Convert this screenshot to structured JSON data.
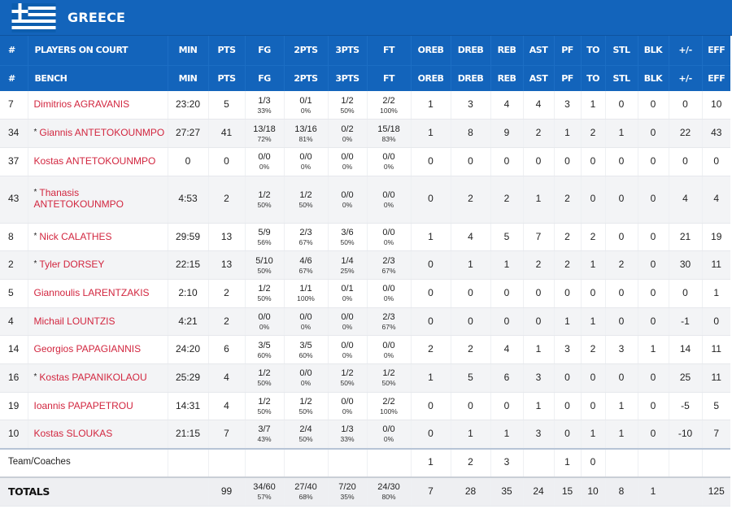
{
  "team": {
    "name": "GREECE",
    "flag_icon": "greece-flag-icon",
    "brand_color": "#1364bb",
    "player_link_color": "#d2263f"
  },
  "headers": {
    "row1": [
      "#",
      "PLAYERS ON COURT",
      "MIN",
      "PTS",
      "FG",
      "2PTS",
      "3PTS",
      "FT",
      "OREB",
      "DREB",
      "REB",
      "AST",
      "PF",
      "TO",
      "STL",
      "BLK",
      "+/-",
      "EFF"
    ],
    "row2": [
      "#",
      "BENCH",
      "MIN",
      "PTS",
      "FG",
      "2PTS",
      "3PTS",
      "FT",
      "OREB",
      "DREB",
      "REB",
      "AST",
      "PF",
      "TO",
      "STL",
      "BLK",
      "+/-",
      "EFF"
    ]
  },
  "players": [
    {
      "num": "7",
      "starter": false,
      "name": "Dimitrios AGRAVANIS",
      "min": "23:20",
      "pts": "5",
      "fg": "1/3",
      "fg_pct": "33%",
      "p2": "0/1",
      "p2_pct": "0%",
      "p3": "1/2",
      "p3_pct": "50%",
      "ft": "2/2",
      "ft_pct": "100%",
      "oreb": "1",
      "dreb": "3",
      "reb": "4",
      "ast": "4",
      "pf": "3",
      "to": "1",
      "stl": "0",
      "blk": "0",
      "pm": "0",
      "eff": "10"
    },
    {
      "num": "34",
      "starter": true,
      "name": "Giannis ANTETOKOUNMPO",
      "min": "27:27",
      "pts": "41",
      "fg": "13/18",
      "fg_pct": "72%",
      "p2": "13/16",
      "p2_pct": "81%",
      "p3": "0/2",
      "p3_pct": "0%",
      "ft": "15/18",
      "ft_pct": "83%",
      "oreb": "1",
      "dreb": "8",
      "reb": "9",
      "ast": "2",
      "pf": "1",
      "to": "2",
      "stl": "1",
      "blk": "0",
      "pm": "22",
      "eff": "43"
    },
    {
      "num": "37",
      "starter": false,
      "name": "Kostas ANTETOKOUNMPO",
      "min": "0",
      "pts": "0",
      "fg": "0/0",
      "fg_pct": "0%",
      "p2": "0/0",
      "p2_pct": "0%",
      "p3": "0/0",
      "p3_pct": "0%",
      "ft": "0/0",
      "ft_pct": "0%",
      "oreb": "0",
      "dreb": "0",
      "reb": "0",
      "ast": "0",
      "pf": "0",
      "to": "0",
      "stl": "0",
      "blk": "0",
      "pm": "0",
      "eff": "0"
    },
    {
      "num": "43",
      "starter": true,
      "name": "Thanasis ANTETOKOUNMPO",
      "min": "4:53",
      "pts": "2",
      "fg": "1/2",
      "fg_pct": "50%",
      "p2": "1/2",
      "p2_pct": "50%",
      "p3": "0/0",
      "p3_pct": "0%",
      "ft": "0/0",
      "ft_pct": "0%",
      "oreb": "0",
      "dreb": "2",
      "reb": "2",
      "ast": "1",
      "pf": "2",
      "to": "0",
      "stl": "0",
      "blk": "0",
      "pm": "4",
      "eff": "4"
    },
    {
      "num": "8",
      "starter": true,
      "name": "Nick CALATHES",
      "min": "29:59",
      "pts": "13",
      "fg": "5/9",
      "fg_pct": "56%",
      "p2": "2/3",
      "p2_pct": "67%",
      "p3": "3/6",
      "p3_pct": "50%",
      "ft": "0/0",
      "ft_pct": "0%",
      "oreb": "1",
      "dreb": "4",
      "reb": "5",
      "ast": "7",
      "pf": "2",
      "to": "2",
      "stl": "0",
      "blk": "0",
      "pm": "21",
      "eff": "19"
    },
    {
      "num": "2",
      "starter": true,
      "name": "Tyler DORSEY",
      "min": "22:15",
      "pts": "13",
      "fg": "5/10",
      "fg_pct": "50%",
      "p2": "4/6",
      "p2_pct": "67%",
      "p3": "1/4",
      "p3_pct": "25%",
      "ft": "2/3",
      "ft_pct": "67%",
      "oreb": "0",
      "dreb": "1",
      "reb": "1",
      "ast": "2",
      "pf": "2",
      "to": "1",
      "stl": "2",
      "blk": "0",
      "pm": "30",
      "eff": "11"
    },
    {
      "num": "5",
      "starter": false,
      "name": "Giannoulis LARENTZAKIS",
      "min": "2:10",
      "pts": "2",
      "fg": "1/2",
      "fg_pct": "50%",
      "p2": "1/1",
      "p2_pct": "100%",
      "p3": "0/1",
      "p3_pct": "0%",
      "ft": "0/0",
      "ft_pct": "0%",
      "oreb": "0",
      "dreb": "0",
      "reb": "0",
      "ast": "0",
      "pf": "0",
      "to": "0",
      "stl": "0",
      "blk": "0",
      "pm": "0",
      "eff": "1"
    },
    {
      "num": "4",
      "starter": false,
      "name": "Michail LOUNTZIS",
      "min": "4:21",
      "pts": "2",
      "fg": "0/0",
      "fg_pct": "0%",
      "p2": "0/0",
      "p2_pct": "0%",
      "p3": "0/0",
      "p3_pct": "0%",
      "ft": "2/3",
      "ft_pct": "67%",
      "oreb": "0",
      "dreb": "0",
      "reb": "0",
      "ast": "0",
      "pf": "1",
      "to": "1",
      "stl": "0",
      "blk": "0",
      "pm": "-1",
      "eff": "0"
    },
    {
      "num": "14",
      "starter": false,
      "name": "Georgios PAPAGIANNIS",
      "min": "24:20",
      "pts": "6",
      "fg": "3/5",
      "fg_pct": "60%",
      "p2": "3/5",
      "p2_pct": "60%",
      "p3": "0/0",
      "p3_pct": "0%",
      "ft": "0/0",
      "ft_pct": "0%",
      "oreb": "2",
      "dreb": "2",
      "reb": "4",
      "ast": "1",
      "pf": "3",
      "to": "2",
      "stl": "3",
      "blk": "1",
      "pm": "14",
      "eff": "11"
    },
    {
      "num": "16",
      "starter": true,
      "name": "Kostas PAPANIKOLAOU",
      "min": "25:29",
      "pts": "4",
      "fg": "1/2",
      "fg_pct": "50%",
      "p2": "0/0",
      "p2_pct": "0%",
      "p3": "1/2",
      "p3_pct": "50%",
      "ft": "1/2",
      "ft_pct": "50%",
      "oreb": "1",
      "dreb": "5",
      "reb": "6",
      "ast": "3",
      "pf": "0",
      "to": "0",
      "stl": "0",
      "blk": "0",
      "pm": "25",
      "eff": "11"
    },
    {
      "num": "19",
      "starter": false,
      "name": "Ioannis PAPAPETROU",
      "min": "14:31",
      "pts": "4",
      "fg": "1/2",
      "fg_pct": "50%",
      "p2": "1/2",
      "p2_pct": "50%",
      "p3": "0/0",
      "p3_pct": "0%",
      "ft": "2/2",
      "ft_pct": "100%",
      "oreb": "0",
      "dreb": "0",
      "reb": "0",
      "ast": "1",
      "pf": "0",
      "to": "0",
      "stl": "1",
      "blk": "0",
      "pm": "-5",
      "eff": "5"
    },
    {
      "num": "10",
      "starter": false,
      "name": "Kostas SLOUKAS",
      "min": "21:15",
      "pts": "7",
      "fg": "3/7",
      "fg_pct": "43%",
      "p2": "2/4",
      "p2_pct": "50%",
      "p3": "1/3",
      "p3_pct": "33%",
      "ft": "0/0",
      "ft_pct": "0%",
      "oreb": "0",
      "dreb": "1",
      "reb": "1",
      "ast": "3",
      "pf": "0",
      "to": "1",
      "stl": "1",
      "blk": "0",
      "pm": "-10",
      "eff": "7"
    }
  ],
  "team_coaches": {
    "label": "Team/Coaches",
    "oreb": "1",
    "dreb": "2",
    "reb": "3",
    "pf": "1",
    "to": "0"
  },
  "totals": {
    "label": "TOTALS",
    "pts": "99",
    "fg": "34/60",
    "fg_pct": "57%",
    "p2": "27/40",
    "p2_pct": "68%",
    "p3": "7/20",
    "p3_pct": "35%",
    "ft": "24/30",
    "ft_pct": "80%",
    "oreb": "7",
    "dreb": "28",
    "reb": "35",
    "ast": "24",
    "pf": "15",
    "to": "10",
    "stl": "8",
    "blk": "1",
    "eff": "125"
  }
}
